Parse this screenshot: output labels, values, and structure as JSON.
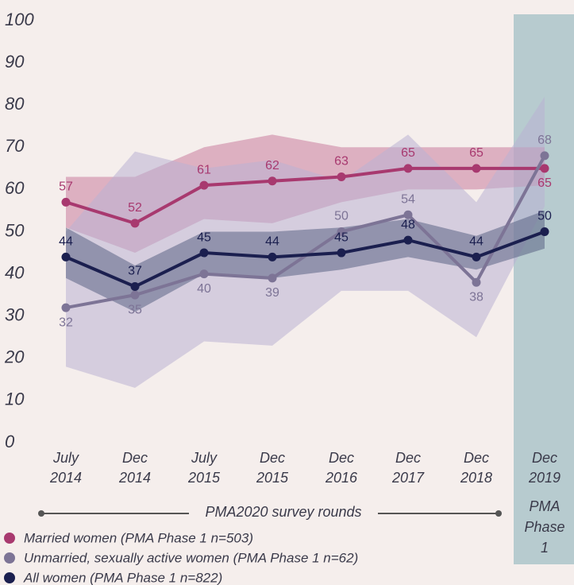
{
  "chart_data": {
    "type": "line",
    "categories": [
      [
        "July",
        "2014"
      ],
      [
        "Dec",
        "2014"
      ],
      [
        "July",
        "2015"
      ],
      [
        "Dec",
        "2015"
      ],
      [
        "Dec",
        "2016"
      ],
      [
        "Dec",
        "2017"
      ],
      [
        "Dec",
        "2018"
      ],
      [
        "Dec",
        "2019"
      ]
    ],
    "series": [
      {
        "name": "Married women (PMA Phase 1 n=503)",
        "color": "#a8396f",
        "band_color": "#c97d9f",
        "values": [
          57,
          52,
          61,
          62,
          63,
          65,
          65,
          65
        ],
        "ci_lower": [
          51,
          45,
          53,
          52,
          57,
          60,
          60,
          61
        ],
        "ci_upper": [
          63,
          63,
          70,
          73,
          70,
          70,
          70,
          70
        ]
      },
      {
        "name": "Unmarried, sexually active women (PMA Phase 1 n=62)",
        "color": "#7d7496",
        "band_color": "#b9b3d3",
        "values": [
          32,
          35,
          40,
          39,
          50,
          54,
          38,
          68
        ],
        "ci_lower": [
          18,
          13,
          24,
          23,
          36,
          36,
          25,
          56
        ],
        "ci_upper": [
          50,
          69,
          65,
          67,
          62,
          73,
          57,
          82
        ]
      },
      {
        "name": "All women (PMA Phase 1 n=822)",
        "color": "#1b1f4f",
        "band_color": "#5b6585",
        "values": [
          44,
          37,
          45,
          44,
          45,
          48,
          44,
          50
        ],
        "ci_lower": [
          39,
          31,
          40,
          39,
          41,
          44,
          41,
          46
        ],
        "ci_upper": [
          51,
          42,
          50,
          50,
          51,
          53,
          49,
          55
        ]
      }
    ],
    "ylim": [
      0,
      100
    ],
    "yticks": [
      0,
      10,
      20,
      30,
      40,
      50,
      60,
      70,
      80,
      90,
      100
    ],
    "grid": false,
    "annotations": {
      "rounds": "PMA2020 survey rounds",
      "phase": [
        "PMA",
        "Phase",
        "1"
      ]
    }
  }
}
